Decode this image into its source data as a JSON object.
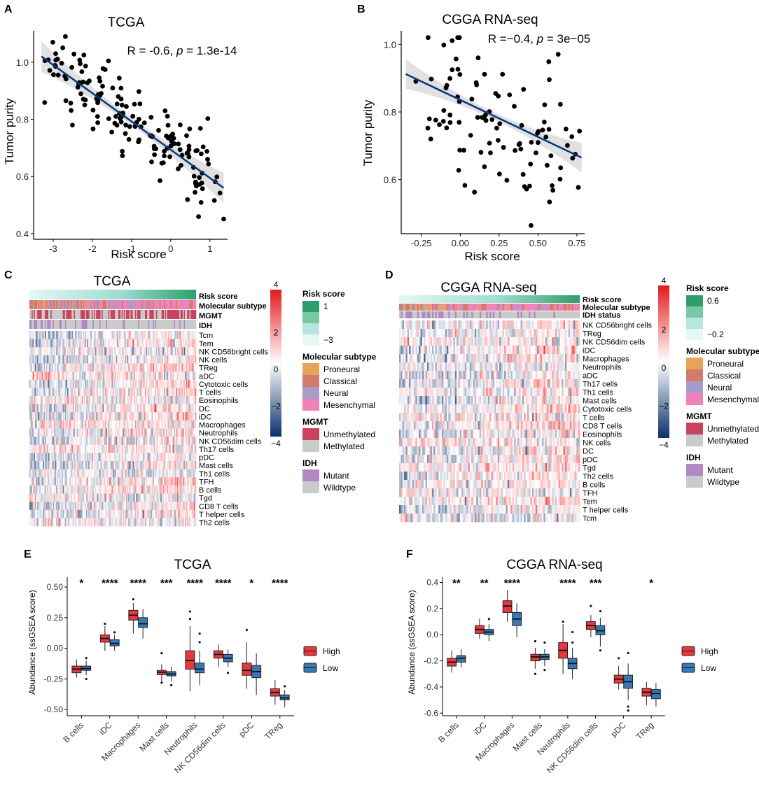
{
  "colors": {
    "line": "#0b3a7e",
    "ci": "#d9d9d9",
    "point": "#000000",
    "high": "#e8383d",
    "low": "#3a78b5",
    "proneural": "#e6a45a",
    "classical": "#d47a6a",
    "neural": "#a79bcc",
    "mesenchymal": "#ef83b8",
    "unmethylated": "#c9435f",
    "methylated": "#c9cbca",
    "idh_mutant": "#b088c4",
    "idh_wildtype": "#c9cbca",
    "heat_pos": "#e41a1c",
    "heat_neg": "#08306b",
    "risk_high": "#2e9e6a",
    "risk_low": "#e6f7f4"
  },
  "panels": {
    "a": {
      "label": "A",
      "title": "TCGA"
    },
    "b": {
      "label": "B",
      "title": "CGGA RNA-seq"
    },
    "c": {
      "label": "C",
      "title": "TCGA"
    },
    "d": {
      "label": "D",
      "title": "CGGA RNA-seq"
    },
    "e": {
      "label": "E",
      "title": "TCGA"
    },
    "f": {
      "label": "F",
      "title": "CGGA RNA-seq"
    }
  },
  "chart_data": [
    {
      "id": "scatter_tcga",
      "type": "scatter",
      "title": "TCGA",
      "xlabel": "Risk score",
      "ylabel": "Tumor purity",
      "xlim": [
        -3.5,
        1.45
      ],
      "ylim": [
        0.38,
        1.11
      ],
      "xticks": [
        -3,
        -2,
        -1,
        0,
        1
      ],
      "yticks": [
        0.4,
        0.6,
        0.8,
        1.0
      ],
      "ytick_labels": [
        "0.4",
        "0.6",
        "0.8",
        "1.0"
      ],
      "stat_prefix": "R = -0.6, ",
      "stat_p": "p",
      "stat_suffix": " = 1.3e-14",
      "fit": {
        "x0": -3.3,
        "y0": 1.02,
        "x1": 1.35,
        "y1": 0.56
      },
      "points_count": 160
    },
    {
      "id": "scatter_cgga",
      "type": "scatter",
      "title": "CGGA RNA-seq",
      "xlabel": "Risk score",
      "ylabel": "Tumor purity",
      "xlim": [
        -0.38,
        0.8
      ],
      "ylim": [
        0.44,
        1.04
      ],
      "xticks": [
        -0.25,
        0.0,
        0.25,
        0.5,
        0.75
      ],
      "xtick_labels": [
        "-0.25",
        "0.00",
        "0.25",
        "0.50",
        "0.75"
      ],
      "yticks": [
        0.6,
        0.8,
        1.0
      ],
      "ytick_labels": [
        "0.6",
        "0.8",
        "1.0"
      ],
      "stat_prefix": "R =−0.4, ",
      "stat_p": "p",
      "stat_suffix": " = 3e−05",
      "fit": {
        "x0": -0.35,
        "y0": 0.912,
        "x1": 0.78,
        "y1": 0.665
      },
      "points_count": 100
    },
    {
      "id": "heatmap_tcga",
      "type": "heatmap",
      "annotations": [
        "Risk score",
        "Molecular subtype",
        "MGMT",
        "IDH"
      ],
      "rows": [
        "Tcm",
        "Tem",
        "NK CD56bright cells",
        "NK cells",
        "TReg",
        "aDC",
        "Cytotoxic cells",
        "T cells",
        "Eosinophils",
        "DC",
        "iDC",
        "Macrophages",
        "Neutrophils",
        "NK CD56dim cells",
        "Th17 cells",
        "pDC",
        "Mast cells",
        "Th1 cells",
        "TFH",
        "B cells",
        "Tgd",
        "CD8 T cells",
        "T helper cells",
        "Th2 cells"
      ],
      "colorbar_ticks": [
        "4",
        "2",
        "0",
        "−2",
        "−4"
      ],
      "legend": {
        "risk": {
          "title": "Risk score",
          "max": "1",
          "min": "−3"
        },
        "subtype": {
          "title": "Molecular subtype",
          "items": [
            "Proneural",
            "Classical",
            "Neural",
            "Mesenchymal"
          ]
        },
        "mgmt": {
          "title": "MGMT",
          "items": [
            "Unmethylated",
            "Methylated"
          ]
        },
        "idh": {
          "title": "IDH",
          "items": [
            "Mutant",
            "Wildtype"
          ]
        }
      }
    },
    {
      "id": "heatmap_cgga",
      "type": "heatmap",
      "annotations": [
        "Risk score",
        "Molecular subtype",
        "IDH status"
      ],
      "rows": [
        "NK CD56bright cells",
        "TReg",
        "NK CD56dim cells",
        "iDC",
        "Macrophages",
        "Neutrophils",
        "aDC",
        "Th17 cells",
        "Th1 cells",
        "Mast cells",
        "Cytotoxic cells",
        "T cells",
        "CD8 T cells",
        "Eosinophils",
        "NK cells",
        "DC",
        "pDC",
        "Tgd",
        "Th2 cells",
        "B cells",
        "TFH",
        "Tem",
        "T helper cells",
        "Tcm"
      ],
      "colorbar_ticks": [
        "4",
        "2",
        "0",
        "−2",
        "−4"
      ],
      "legend": {
        "risk": {
          "title": "Risk score",
          "max": "0.6",
          "min": "−0.2"
        },
        "subtype": {
          "title": "Molecular subtype",
          "items": [
            "Proneural",
            "Classical",
            "Neural",
            "Mesenchymal"
          ]
        },
        "mgmt": {
          "title": "MGMT",
          "items": [
            "Unmethylated",
            "Methylated"
          ]
        },
        "idh": {
          "title": "IDH",
          "items": [
            "Mutant",
            "Wildtype"
          ]
        }
      }
    },
    {
      "id": "box_tcga",
      "type": "box",
      "title": "TCGA",
      "ylabel": "Abundance (ssGSEA score)",
      "ylim": [
        -0.55,
        0.58
      ],
      "yticks": [
        -0.5,
        -0.25,
        0.0,
        0.25,
        0.5
      ],
      "ytick_labels": [
        "-0.50",
        "-0.25",
        "0.00",
        "0.25",
        "0.50"
      ],
      "categories": [
        "B cells",
        "iDC",
        "Macrophages",
        "Mast cells",
        "Neutrophils",
        "NK CD56dim cells",
        "pDC",
        "TReg"
      ],
      "significance": [
        "*",
        "****",
        "****",
        "***",
        "****",
        "****",
        "*",
        "****"
      ],
      "legend": [
        "High",
        "Low"
      ],
      "series": [
        {
          "name": "High",
          "stats": [
            {
              "min": -0.24,
              "q1": -0.2,
              "median": -0.17,
              "q3": -0.145,
              "max": -0.09,
              "outliers": []
            },
            {
              "min": -0.02,
              "q1": 0.05,
              "median": 0.08,
              "q3": 0.11,
              "max": 0.18,
              "outliers": [
                0.2
              ]
            },
            {
              "min": 0.12,
              "q1": 0.23,
              "median": 0.27,
              "q3": 0.31,
              "max": 0.37,
              "outliers": [
                0.4
              ]
            },
            {
              "min": -0.27,
              "q1": -0.215,
              "median": -0.195,
              "q3": -0.18,
              "max": -0.13,
              "outliers": [
                -0.04,
                -0.28
              ]
            },
            {
              "min": -0.35,
              "q1": -0.17,
              "median": -0.1,
              "q3": -0.02,
              "max": 0.18,
              "outliers": [
                0.24,
                0.3
              ]
            },
            {
              "min": -0.15,
              "q1": -0.08,
              "median": -0.05,
              "q3": -0.02,
              "max": 0.03,
              "outliers": []
            },
            {
              "min": -0.33,
              "q1": -0.22,
              "median": -0.18,
              "q3": -0.12,
              "max": 0.05,
              "outliers": [
                0.15
              ]
            },
            {
              "min": -0.46,
              "q1": -0.39,
              "median": -0.36,
              "q3": -0.33,
              "max": -0.26,
              "outliers": []
            }
          ]
        },
        {
          "name": "Low",
          "stats": [
            {
              "min": -0.22,
              "q1": -0.18,
              "median": -0.165,
              "q3": -0.145,
              "max": -0.1,
              "outliers": [
                -0.08,
                -0.25
              ]
            },
            {
              "min": -0.02,
              "q1": 0.02,
              "median": 0.04,
              "q3": 0.07,
              "max": 0.11,
              "outliers": [
                0.13
              ]
            },
            {
              "min": 0.08,
              "q1": 0.17,
              "median": 0.2,
              "q3": 0.25,
              "max": 0.32,
              "outliers": []
            },
            {
              "min": -0.27,
              "q1": -0.225,
              "median": -0.21,
              "q3": -0.19,
              "max": -0.15,
              "outliers": [
                -0.3
              ]
            },
            {
              "min": -0.3,
              "q1": -0.2,
              "median": -0.17,
              "q3": -0.12,
              "max": -0.02,
              "outliers": [
                0.05,
                0.12
              ]
            },
            {
              "min": -0.15,
              "q1": -0.11,
              "median": -0.08,
              "q3": -0.05,
              "max": -0.01,
              "outliers": [
                -0.2
              ]
            },
            {
              "min": -0.38,
              "q1": -0.24,
              "median": -0.19,
              "q3": -0.14,
              "max": -0.04,
              "outliers": []
            },
            {
              "min": -0.48,
              "q1": -0.42,
              "median": -0.405,
              "q3": -0.38,
              "max": -0.34,
              "outliers": [
                -0.31
              ]
            }
          ]
        }
      ]
    },
    {
      "id": "box_cgga",
      "type": "box",
      "title": "CGGA RNA-seq",
      "ylabel": "Abundance (ssGSEA score)",
      "ylim": [
        -0.62,
        0.44
      ],
      "yticks": [
        -0.6,
        -0.4,
        -0.2,
        0.0,
        0.2,
        0.4
      ],
      "ytick_labels": [
        "-0.6",
        "-0.4",
        "-0.2",
        "0.0",
        "0.2",
        "0.4"
      ],
      "categories": [
        "B cells",
        "iDC",
        "Macrophages",
        "Mast cells",
        "Neutrophils",
        "NK CD56dim cells",
        "pDC",
        "TReg"
      ],
      "significance": [
        "**",
        "**",
        "****",
        "",
        "****",
        "***",
        "",
        "*"
      ],
      "legend": [
        "High",
        "Low"
      ],
      "series": [
        {
          "name": "High",
          "stats": [
            {
              "min": -0.29,
              "q1": -0.24,
              "median": -0.21,
              "q3": -0.18,
              "max": -0.12,
              "outliers": []
            },
            {
              "min": -0.03,
              "q1": 0.01,
              "median": 0.04,
              "q3": 0.07,
              "max": 0.12,
              "outliers": []
            },
            {
              "min": 0.1,
              "q1": 0.17,
              "median": 0.22,
              "q3": 0.26,
              "max": 0.34,
              "outliers": []
            },
            {
              "min": -0.26,
              "q1": -0.2,
              "median": -0.17,
              "q3": -0.15,
              "max": -0.1,
              "outliers": [
                -0.05,
                -0.3
              ]
            },
            {
              "min": -0.3,
              "q1": -0.18,
              "median": -0.12,
              "q3": -0.06,
              "max": 0.08,
              "outliers": [
                0.1
              ]
            },
            {
              "min": -0.02,
              "q1": 0.04,
              "median": 0.07,
              "q3": 0.1,
              "max": 0.15,
              "outliers": [
                0.22
              ]
            },
            {
              "min": -0.42,
              "q1": -0.37,
              "median": -0.34,
              "q3": -0.31,
              "max": -0.24,
              "outliers": [
                -0.18
              ]
            },
            {
              "min": -0.54,
              "q1": -0.47,
              "median": -0.44,
              "q3": -0.41,
              "max": -0.36,
              "outliers": []
            }
          ]
        },
        {
          "name": "Low",
          "stats": [
            {
              "min": -0.25,
              "q1": -0.21,
              "median": -0.18,
              "q3": -0.16,
              "max": -0.11,
              "outliers": []
            },
            {
              "min": -0.05,
              "q1": 0.0,
              "median": 0.02,
              "q3": 0.04,
              "max": 0.08,
              "outliers": [
                0.12
              ]
            },
            {
              "min": -0.02,
              "q1": 0.07,
              "median": 0.12,
              "q3": 0.17,
              "max": 0.24,
              "outliers": []
            },
            {
              "min": -0.24,
              "q1": -0.19,
              "median": -0.17,
              "q3": -0.15,
              "max": -0.11,
              "outliers": [
                -0.06,
                -0.27
              ]
            },
            {
              "min": -0.34,
              "q1": -0.26,
              "median": -0.22,
              "q3": -0.18,
              "max": -0.1,
              "outliers": [
                0.02,
                -0.06
              ]
            },
            {
              "min": -0.09,
              "q1": 0.0,
              "median": 0.03,
              "q3": 0.07,
              "max": 0.13,
              "outliers": [
                0.18,
                -0.12
              ]
            },
            {
              "min": -0.5,
              "q1": -0.41,
              "median": -0.36,
              "q3": -0.31,
              "max": -0.22,
              "outliers": [
                -0.14,
                -0.55,
                -0.58
              ]
            },
            {
              "min": -0.55,
              "q1": -0.49,
              "median": -0.45,
              "q3": -0.42,
              "max": -0.37,
              "outliers": []
            }
          ]
        }
      ]
    }
  ]
}
